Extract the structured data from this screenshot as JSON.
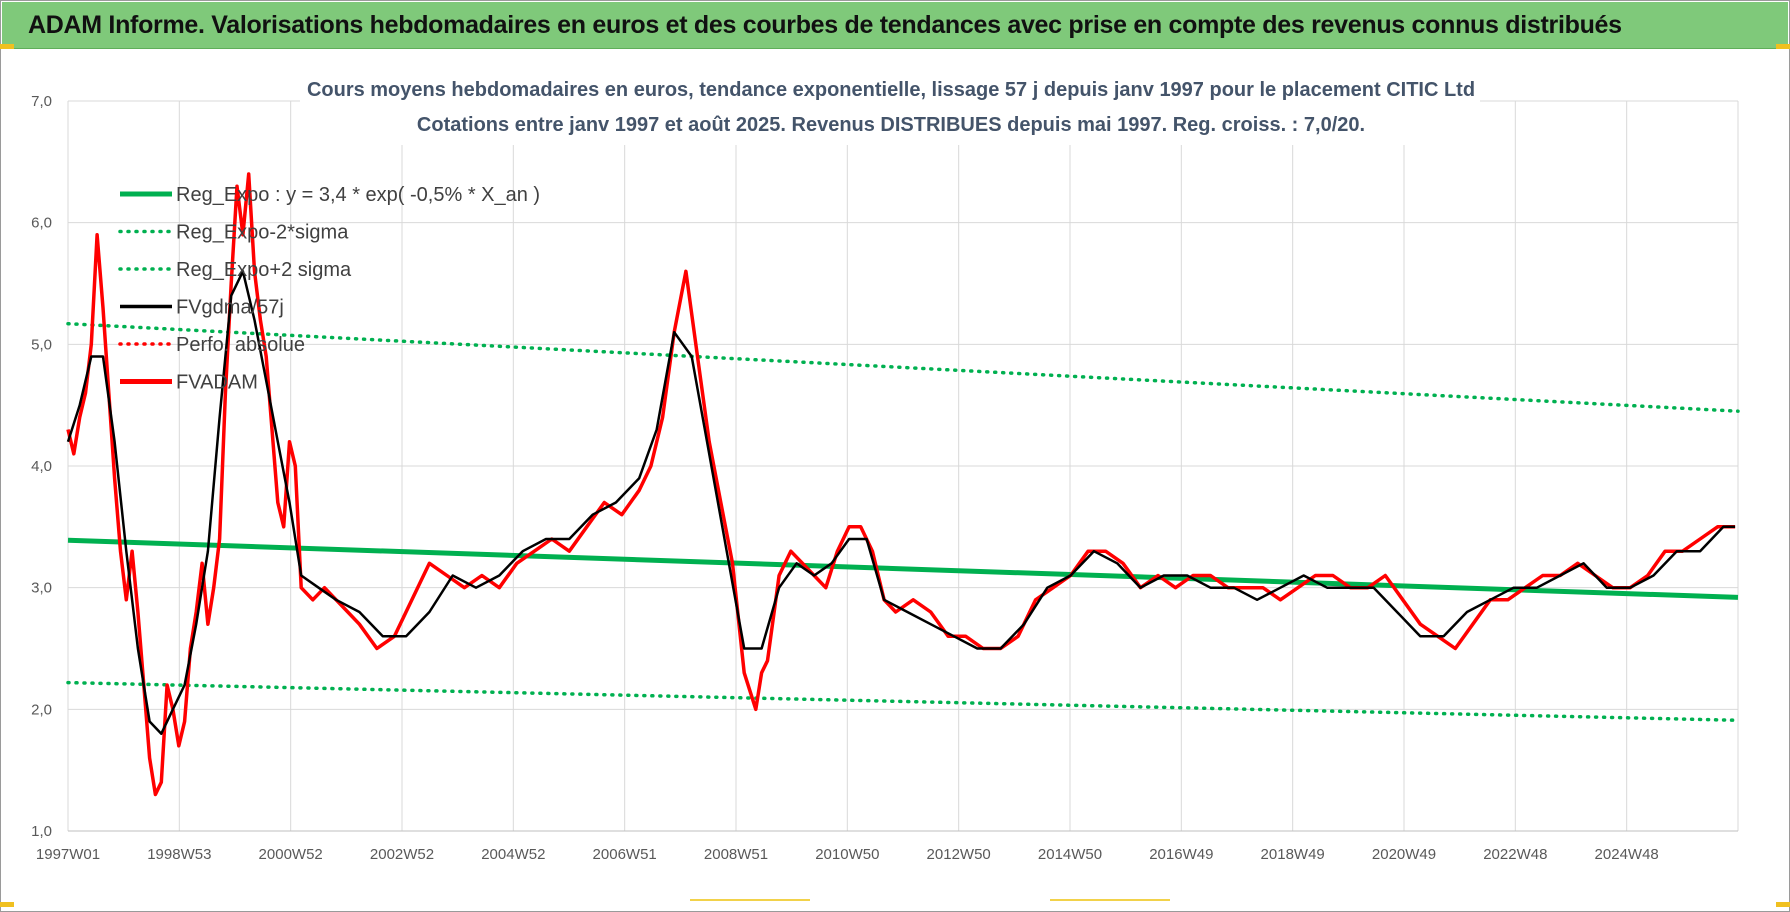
{
  "banner": {
    "title": "ADAM Informe. Valorisations hebdomadaires en euros et des courbes de tendances avec prise en compte des revenus connus distribués"
  },
  "colors": {
    "banner_bg": "#7fc97a",
    "reg_expo": "#00b050",
    "fvgdma": "#000000",
    "fvadam": "#ff0000",
    "perfo": "#ff0000",
    "grid": "#d9d9d9"
  },
  "chart_data": {
    "type": "line",
    "title": "Cours moyens hebdomadaires en euros, tendance exponentielle, lissage 57 j depuis janv 1997 pour le placement CITIC Ltd",
    "subtitle": "Cotations entre janv 1997 et août 2025. Revenus DISTRIBUES depuis mai 1997. Reg. croiss. : 7,0/20.",
    "xlabel": "",
    "ylabel": "",
    "ylim": [
      1.0,
      7.0
    ],
    "xlim": [
      1997.0,
      2025.65
    ],
    "y_ticks": [
      "1,0",
      "2,0",
      "3,0",
      "4,0",
      "5,0",
      "6,0",
      "7,0"
    ],
    "x_ticks": [
      "1997W01",
      "1998W53",
      "2000W52",
      "2002W52",
      "2004W52",
      "2006W51",
      "2008W51",
      "2010W50",
      "2012W50",
      "2014W50",
      "2016W49",
      "2018W49",
      "2020W49",
      "2022W48",
      "2024W48"
    ],
    "grid": true,
    "legend_position": "top-left",
    "legend": [
      {
        "label": "Reg_Expo : y = 3,4 * exp( -0,5% *  X_an )",
        "style": "solid-thick",
        "color": "#00b050"
      },
      {
        "label": "Reg_Expo-2*sigma",
        "style": "dotted",
        "color": "#00b050"
      },
      {
        "label": "Reg_Expo+2 sigma",
        "style": "dotted",
        "color": "#00b050"
      },
      {
        "label": "FVgdma/57j",
        "style": "solid",
        "color": "#000000"
      },
      {
        "label": "Perfo. absolue",
        "style": "dotted",
        "color": "#ff0000"
      },
      {
        "label": "FVADAM",
        "style": "solid-thick",
        "color": "#ff0000"
      }
    ],
    "series": [
      {
        "name": "Reg_Expo : y = 3,4 * exp( -0,5% *  X_an )",
        "x": [
          1997.0,
          2025.65
        ],
        "values": [
          3.39,
          2.92
        ]
      },
      {
        "name": "Reg_Expo-2*sigma",
        "x": [
          1997.0,
          2025.65
        ],
        "values": [
          2.22,
          1.91
        ]
      },
      {
        "name": "Reg_Expo+2 sigma",
        "x": [
          1997.0,
          2025.65
        ],
        "values": [
          5.17,
          4.45
        ]
      },
      {
        "name": "FVADAM",
        "x": [
          1997.0,
          1997.1,
          1997.2,
          1997.3,
          1997.4,
          1997.5,
          1997.6,
          1997.7,
          1997.8,
          1997.9,
          1998.0,
          1998.1,
          1998.2,
          1998.3,
          1998.4,
          1998.5,
          1998.6,
          1998.7,
          1998.8,
          1998.9,
          1999.0,
          1999.1,
          1999.2,
          1999.3,
          1999.4,
          1999.5,
          1999.6,
          1999.7,
          1999.8,
          1999.9,
          2000.0,
          2000.1,
          2000.2,
          2000.3,
          2000.4,
          2000.5,
          2000.6,
          2000.7,
          2000.8,
          2000.9,
          2001.0,
          2001.2,
          2001.4,
          2001.6,
          2001.8,
          2002.0,
          2002.3,
          2002.6,
          2002.9,
          2003.2,
          2003.5,
          2003.8,
          2004.1,
          2004.4,
          2004.7,
          2005.0,
          2005.3,
          2005.6,
          2005.9,
          2006.2,
          2006.5,
          2006.8,
          2007.0,
          2007.2,
          2007.4,
          2007.6,
          2007.8,
          2008.0,
          2008.2,
          2008.4,
          2008.6,
          2008.8,
          2008.9,
          2009.0,
          2009.2,
          2009.4,
          2009.6,
          2009.8,
          2010.0,
          2010.2,
          2010.4,
          2010.6,
          2010.8,
          2011.0,
          2011.2,
          2011.5,
          2011.8,
          2012.1,
          2012.4,
          2012.7,
          2013.0,
          2013.3,
          2013.6,
          2013.9,
          2014.2,
          2014.5,
          2014.8,
          2015.1,
          2015.4,
          2015.7,
          2016.0,
          2016.3,
          2016.6,
          2016.9,
          2017.2,
          2017.5,
          2017.8,
          2018.1,
          2018.4,
          2018.7,
          2019.0,
          2019.3,
          2019.6,
          2019.9,
          2020.2,
          2020.5,
          2020.8,
          2021.1,
          2021.4,
          2021.7,
          2022.0,
          2022.3,
          2022.6,
          2022.9,
          2023.2,
          2023.5,
          2023.8,
          2024.1,
          2024.4,
          2024.7,
          2025.0,
          2025.3,
          2025.6
        ],
        "values": [
          4.3,
          4.1,
          4.4,
          4.6,
          5.0,
          5.9,
          5.3,
          4.6,
          3.9,
          3.3,
          2.9,
          3.3,
          2.8,
          2.2,
          1.6,
          1.3,
          1.4,
          2.2,
          2.0,
          1.7,
          1.9,
          2.5,
          2.8,
          3.2,
          2.7,
          3.0,
          3.4,
          4.6,
          5.5,
          6.3,
          5.9,
          6.4,
          5.6,
          5.2,
          4.9,
          4.3,
          3.7,
          3.5,
          4.2,
          4.0,
          3.0,
          2.9,
          3.0,
          2.9,
          2.8,
          2.7,
          2.5,
          2.6,
          2.9,
          3.2,
          3.1,
          3.0,
          3.1,
          3.0,
          3.2,
          3.3,
          3.4,
          3.3,
          3.5,
          3.7,
          3.6,
          3.8,
          4.0,
          4.4,
          5.1,
          5.6,
          4.9,
          4.2,
          3.7,
          3.2,
          2.3,
          2.0,
          2.3,
          2.4,
          3.1,
          3.3,
          3.2,
          3.1,
          3.0,
          3.3,
          3.5,
          3.5,
          3.3,
          2.9,
          2.8,
          2.9,
          2.8,
          2.6,
          2.6,
          2.5,
          2.5,
          2.6,
          2.9,
          3.0,
          3.1,
          3.3,
          3.3,
          3.2,
          3.0,
          3.1,
          3.0,
          3.1,
          3.1,
          3.0,
          3.0,
          3.0,
          2.9,
          3.0,
          3.1,
          3.1,
          3.0,
          3.0,
          3.1,
          2.9,
          2.7,
          2.6,
          2.5,
          2.7,
          2.9,
          2.9,
          3.0,
          3.1,
          3.1,
          3.2,
          3.1,
          3.0,
          3.0,
          3.1,
          3.3,
          3.3,
          3.4,
          3.5,
          3.5
        ]
      },
      {
        "name": "FVgdma/57j",
        "x": [
          1997.0,
          1997.2,
          1997.4,
          1997.6,
          1997.8,
          1998.0,
          1998.2,
          1998.4,
          1998.6,
          1998.8,
          1999.0,
          1999.2,
          1999.4,
          1999.6,
          1999.8,
          2000.0,
          2000.2,
          2000.4,
          2000.6,
          2000.8,
          2001.0,
          2001.3,
          2001.6,
          2002.0,
          2002.4,
          2002.8,
          2003.2,
          2003.6,
          2004.0,
          2004.4,
          2004.8,
          2005.2,
          2005.6,
          2006.0,
          2006.4,
          2006.8,
          2007.1,
          2007.4,
          2007.7,
          2008.0,
          2008.3,
          2008.6,
          2008.9,
          2009.2,
          2009.5,
          2009.8,
          2010.1,
          2010.4,
          2010.7,
          2011.0,
          2011.4,
          2011.8,
          2012.2,
          2012.6,
          2013.0,
          2013.4,
          2013.8,
          2014.2,
          2014.6,
          2015.0,
          2015.4,
          2015.8,
          2016.2,
          2016.6,
          2017.0,
          2017.4,
          2017.8,
          2018.2,
          2018.6,
          2019.0,
          2019.4,
          2019.8,
          2020.2,
          2020.6,
          2021.0,
          2021.4,
          2021.8,
          2022.2,
          2022.6,
          2023.0,
          2023.4,
          2023.8,
          2024.2,
          2024.6,
          2025.0,
          2025.4,
          2025.6
        ],
        "values": [
          4.2,
          4.5,
          4.9,
          4.9,
          4.2,
          3.3,
          2.5,
          1.9,
          1.8,
          2.0,
          2.2,
          2.7,
          3.3,
          4.4,
          5.4,
          5.6,
          5.2,
          4.7,
          4.2,
          3.7,
          3.1,
          3.0,
          2.9,
          2.8,
          2.6,
          2.6,
          2.8,
          3.1,
          3.0,
          3.1,
          3.3,
          3.4,
          3.4,
          3.6,
          3.7,
          3.9,
          4.3,
          5.1,
          4.9,
          4.1,
          3.3,
          2.5,
          2.5,
          3.0,
          3.2,
          3.1,
          3.2,
          3.4,
          3.4,
          2.9,
          2.8,
          2.7,
          2.6,
          2.5,
          2.5,
          2.7,
          3.0,
          3.1,
          3.3,
          3.2,
          3.0,
          3.1,
          3.1,
          3.0,
          3.0,
          2.9,
          3.0,
          3.1,
          3.0,
          3.0,
          3.0,
          2.8,
          2.6,
          2.6,
          2.8,
          2.9,
          3.0,
          3.0,
          3.1,
          3.2,
          3.0,
          3.0,
          3.1,
          3.3,
          3.3,
          3.5,
          3.5
        ]
      }
    ]
  }
}
